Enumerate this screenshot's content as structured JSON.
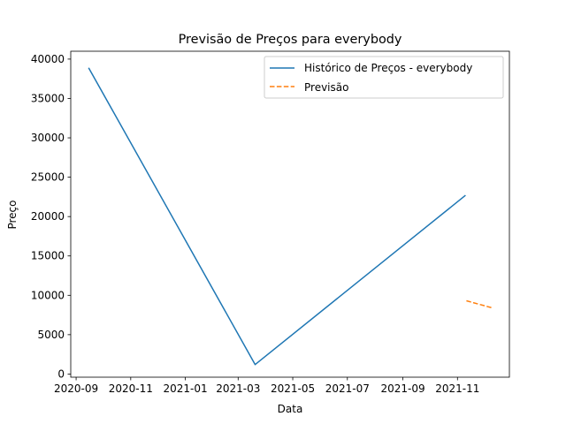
{
  "chart_data": {
    "type": "line",
    "title": "Previsão de Preços para everybody",
    "xlabel": "Data",
    "ylabel": "Preço",
    "x_ticks": [
      "2020-09",
      "2020-11",
      "2021-01",
      "2021-03",
      "2021-05",
      "2021-07",
      "2021-09",
      "2021-11"
    ],
    "y_ticks": [
      0,
      5000,
      10000,
      15000,
      20000,
      25000,
      30000,
      35000,
      40000
    ],
    "xlim": [
      "2020-08-26",
      "2021-12-29"
    ],
    "ylim": [
      -400,
      41000
    ],
    "grid": false,
    "legend_position": "top-right",
    "series": [
      {
        "name": "Histórico de Preços - everybody",
        "color": "#1f77b4",
        "style": "solid",
        "points": [
          {
            "x": "2020-09-15",
            "y": 38900
          },
          {
            "x": "2021-03-20",
            "y": 1200
          },
          {
            "x": "2021-11-10",
            "y": 22700
          }
        ]
      },
      {
        "name": "Previsão",
        "color": "#ff7f0e",
        "style": "dashed",
        "points": [
          {
            "x": "2021-11-11",
            "y": 9300
          },
          {
            "x": "2021-12-10",
            "y": 8400
          }
        ]
      }
    ]
  }
}
